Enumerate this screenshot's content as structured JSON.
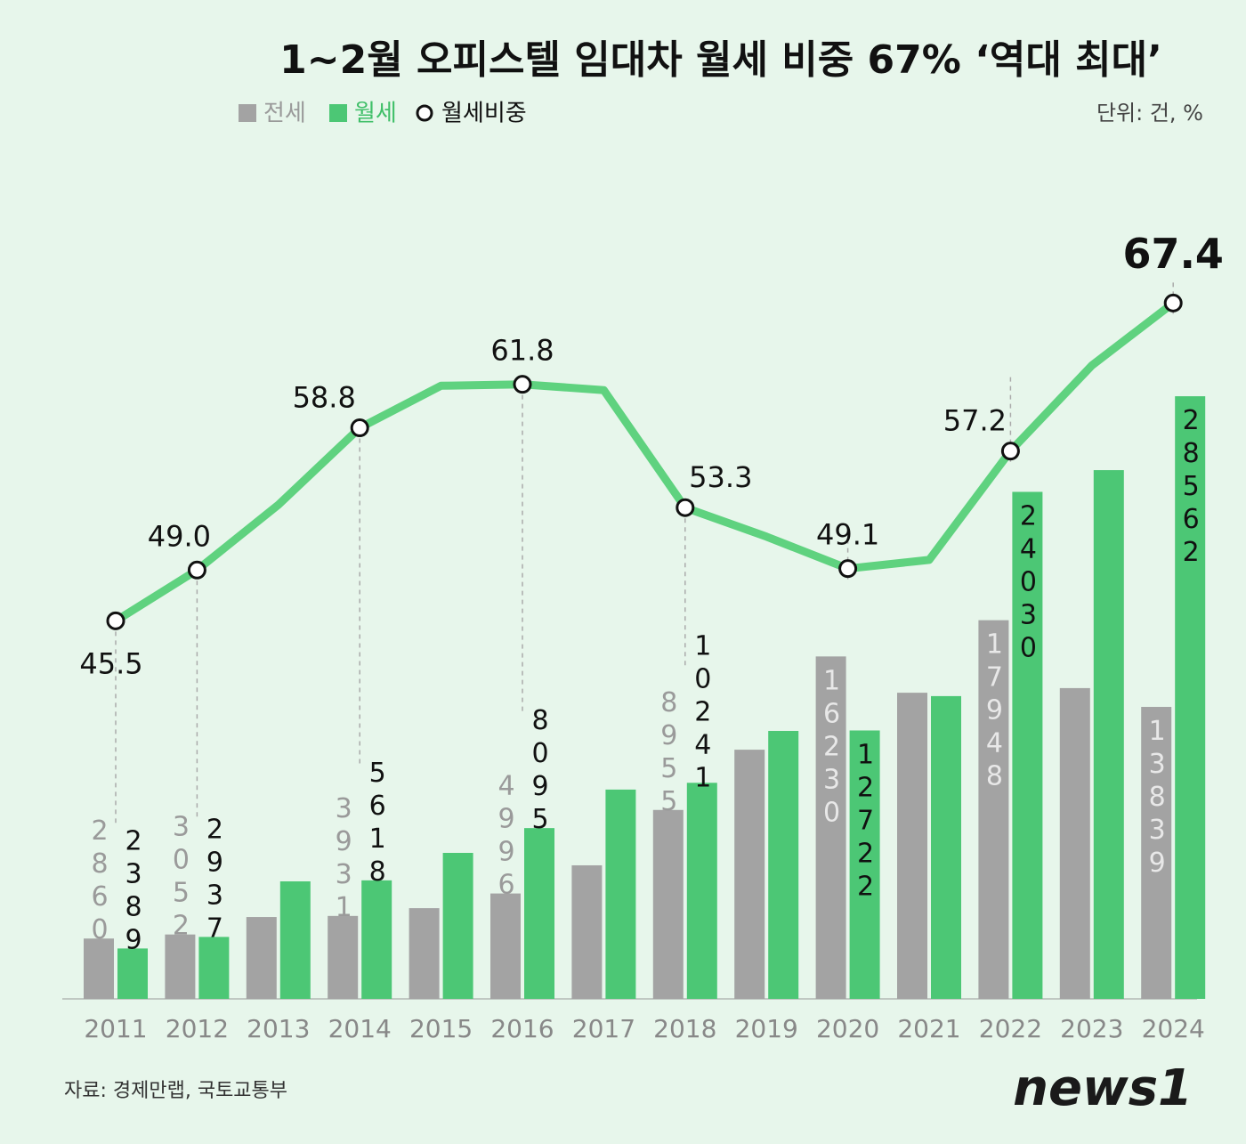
{
  "chart_data": {
    "type": "bar",
    "title": "1~2월 오피스텔 임대차 월세 비중 67% ‘역대 최대’",
    "unit": "단위: 건, %",
    "source": "자료: 경제만랩, 국토교통부",
    "logo": "news1",
    "categories": [
      "2011",
      "2012",
      "2013",
      "2014",
      "2015",
      "2016",
      "2017",
      "2018",
      "2019",
      "2020",
      "2021",
      "2022",
      "2023",
      "2024"
    ],
    "ylim": [
      0,
      30000
    ],
    "y2lim": [
      40,
      70
    ],
    "series": [
      {
        "name": "전세",
        "color": "#a3a3a3",
        "values": [
          2860,
          3052,
          3880,
          3931,
          4300,
          4996,
          6330,
          8955,
          11810,
          16230,
          14510,
          17948,
          14730,
          13839
        ],
        "value_labels": [
          "2860",
          "3052",
          null,
          "3931",
          null,
          "4996",
          null,
          "8955",
          null,
          "16230",
          null,
          "17948",
          null,
          "13839"
        ]
      },
      {
        "name": "월세",
        "color": "#4cc775",
        "values": [
          2389,
          2937,
          5570,
          5618,
          6920,
          8095,
          9920,
          10241,
          12700,
          12722,
          14350,
          24030,
          25060,
          28562
        ],
        "value_labels": [
          "2389",
          "2937",
          null,
          "5618",
          null,
          "8095",
          null,
          "10241",
          null,
          "12722",
          null,
          "24030",
          null,
          "28562"
        ]
      },
      {
        "name": "월세비중",
        "type": "line",
        "axis": "y2",
        "color": "#5fd27f",
        "values": [
          45.5,
          49.0,
          53.5,
          58.8,
          61.7,
          61.8,
          61.4,
          53.3,
          51.3,
          49.1,
          49.7,
          57.2,
          63.1,
          67.4
        ],
        "value_labels": [
          "45.5",
          "49.0",
          null,
          "58.8",
          null,
          "61.8",
          null,
          "53.3",
          null,
          "49.1",
          null,
          "57.2",
          null,
          "67.4"
        ]
      }
    ]
  }
}
